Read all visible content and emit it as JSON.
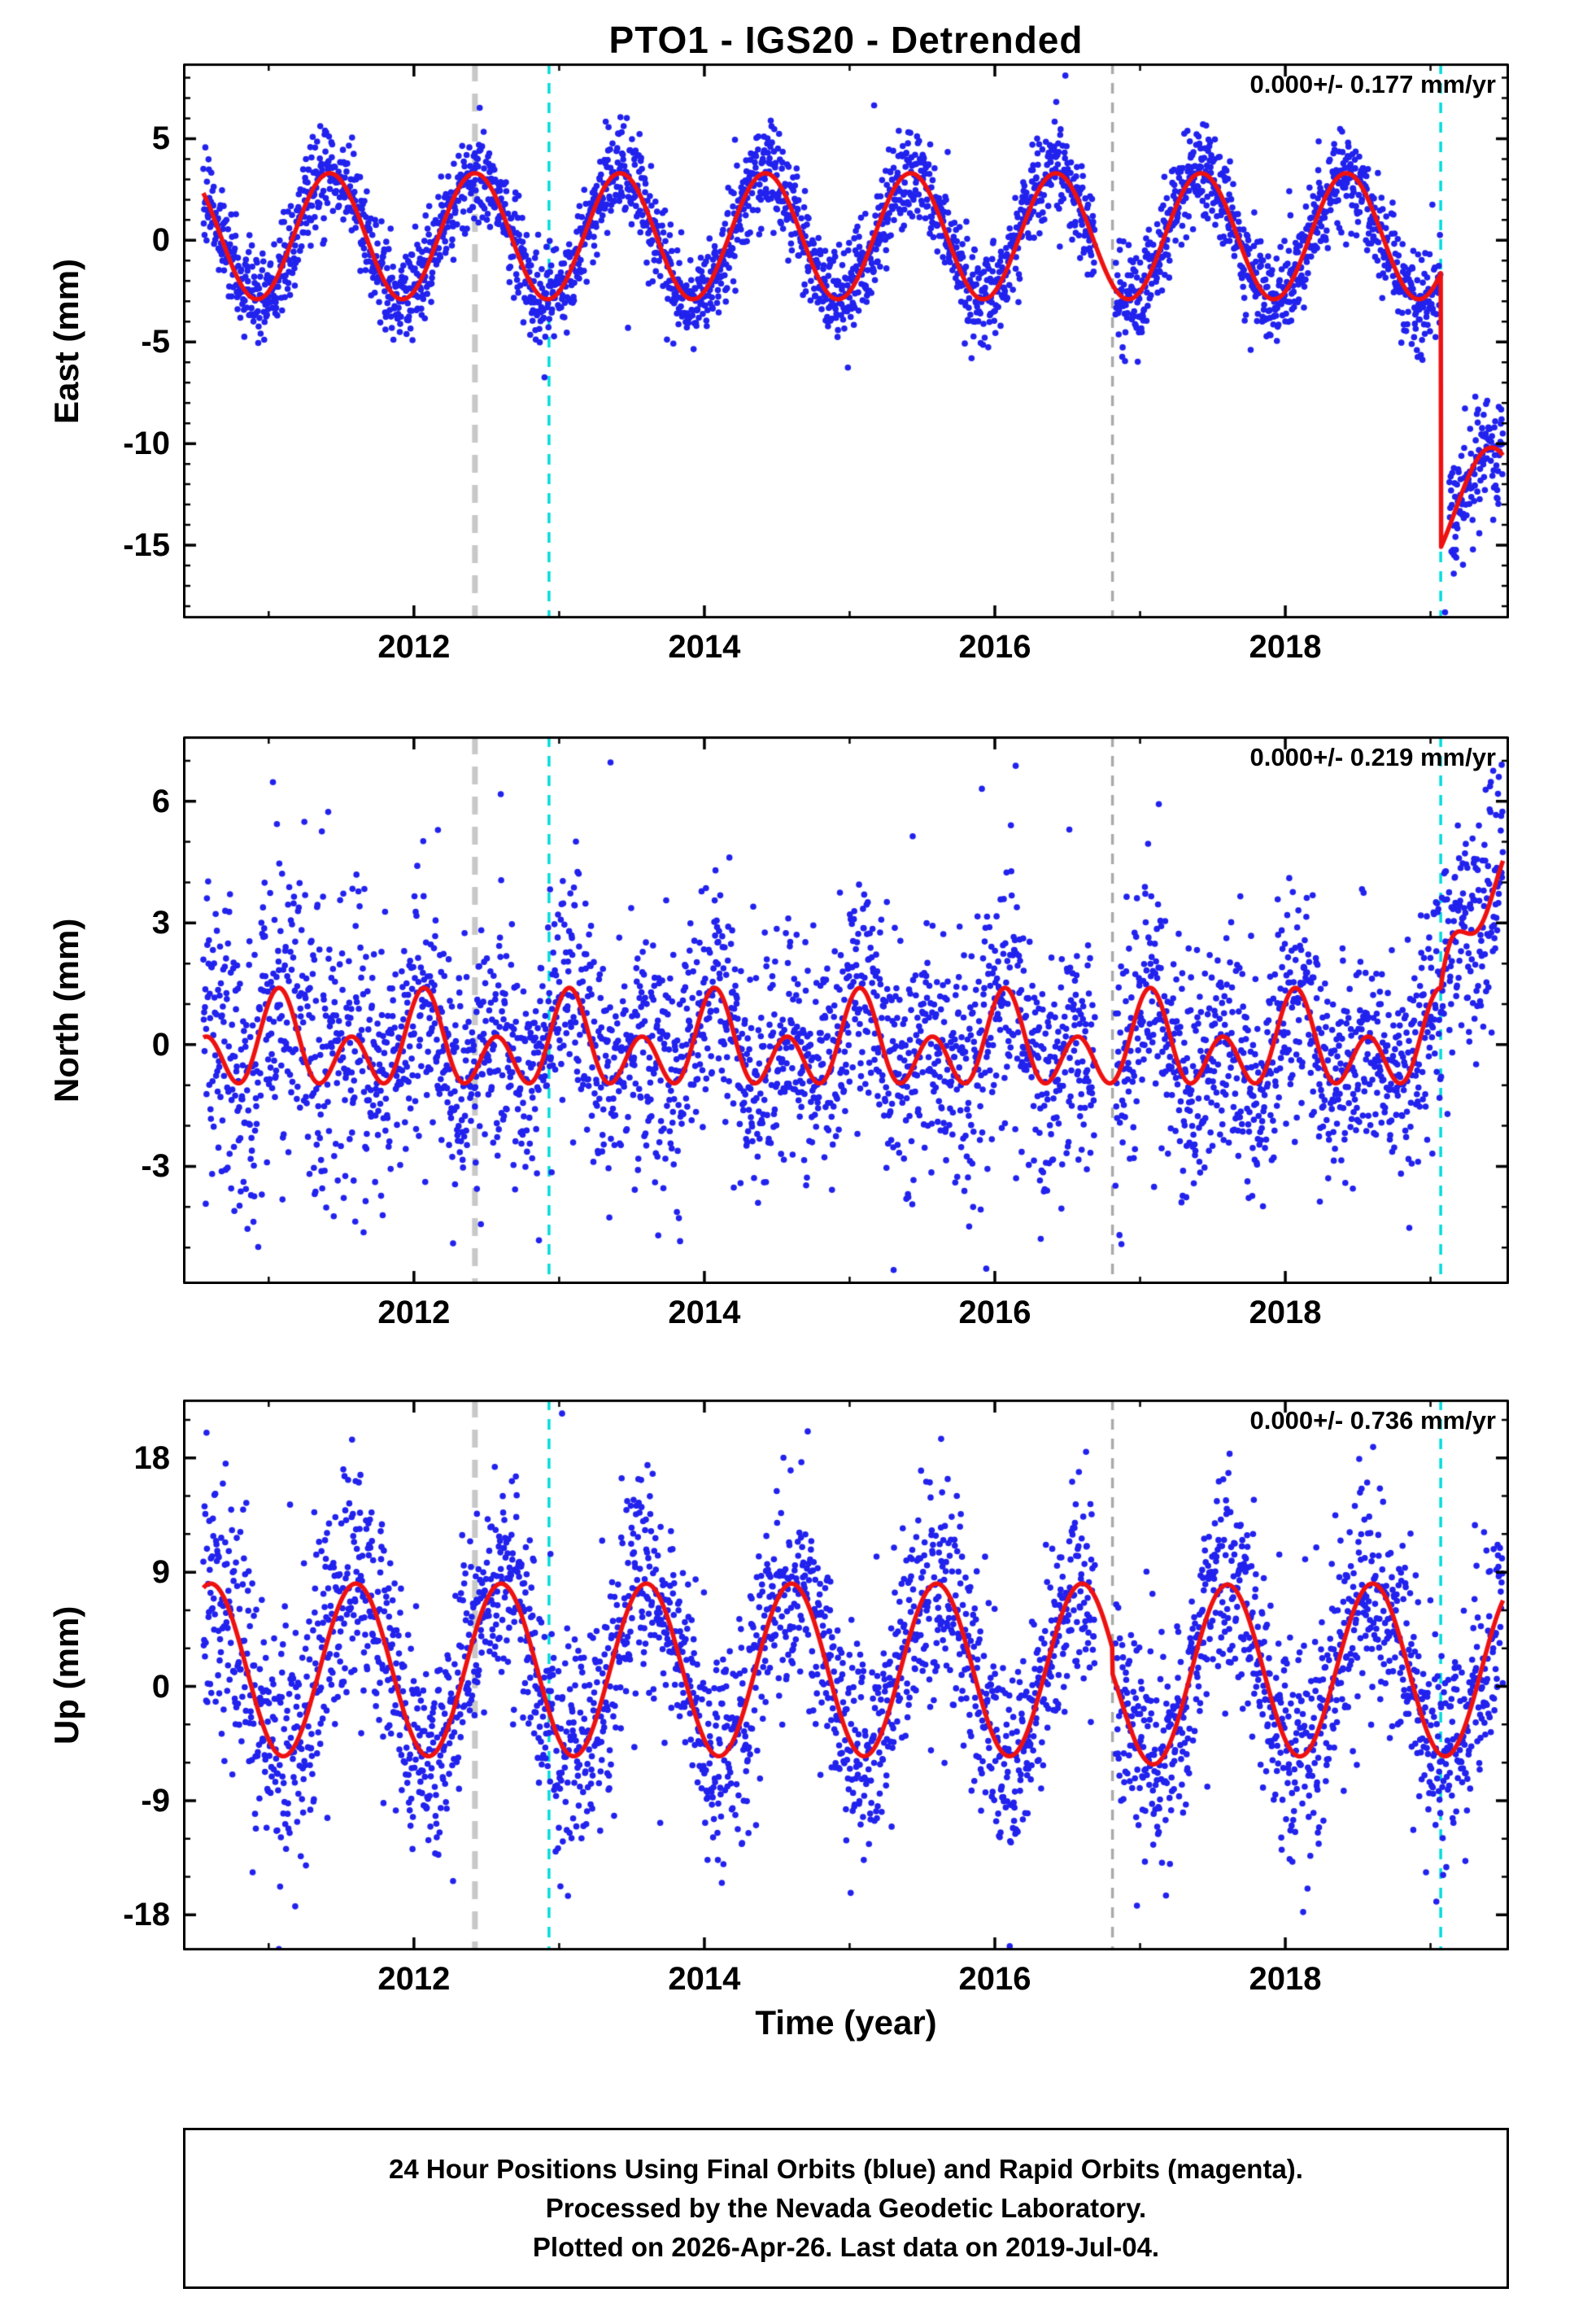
{
  "title": "PTO1 - IGS20 - Detrended",
  "x_axis_title": "Time (year)",
  "caption_lines": [
    "24 Hour Positions Using Final Orbits (blue) and Rapid Orbits (magenta).",
    "Processed by the Nevada Geodetic Laboratory.",
    "Plotted on 2026-Apr-26. Last data on 2019-Jul-04."
  ],
  "colors": {
    "points": "#2222ee",
    "model": "#ee1111",
    "frame": "#000000",
    "event_gray": "#c8c8c8",
    "event_gray_thin": "#aaaaaa",
    "event_cyan": "#00dcdc"
  },
  "events": [
    {
      "t": 2012.42,
      "style": "gray_thick"
    },
    {
      "t": 2012.93,
      "style": "cyan"
    },
    {
      "t": 2016.81,
      "style": "gray"
    },
    {
      "t": 2019.07,
      "style": "cyan"
    }
  ],
  "chart_data": [
    {
      "type": "scatter",
      "ylabel": "East (mm)",
      "rate_label": "0.000+/- 0.177 mm/yr",
      "xlim": [
        2010.41,
        2019.54
      ],
      "ylim": [
        -18.6,
        8.7
      ],
      "xticks": [
        2012,
        2014,
        2016,
        2018
      ],
      "xtick_minor_step": 1,
      "yticks": [
        5,
        0,
        -5,
        -10,
        -15
      ],
      "ytick_minor_step": 1,
      "x_start": 2010.55,
      "x_end": 2019.5,
      "gaps": [
        [
          2016.69,
          2016.83
        ],
        [
          2019.07,
          2019.13
        ]
      ],
      "noise_sd": 1.15,
      "noise_segments": [
        [
          2019.13,
          2019.5,
          1.45
        ]
      ],
      "outlier_rate": 0.008,
      "point_radius": 3.8,
      "model": {
        "mean": 0.2,
        "annual_amp": 3.1,
        "annual_phase": 0.42,
        "semi_amp": 0,
        "semi_phase": 0,
        "steps": [
          {
            "t": 2019.07,
            "offset": -13.5
          }
        ]
      },
      "extra_points": [
        [
          2019.1,
          -18.3
        ],
        [
          2019.16,
          -16.4
        ]
      ]
    },
    {
      "type": "scatter",
      "ylabel": "North (mm)",
      "rate_label": "0.000+/- 0.219 mm/yr",
      "xlim": [
        2010.41,
        2019.54
      ],
      "ylim": [
        -5.9,
        7.6
      ],
      "xticks": [
        2012,
        2014,
        2016,
        2018
      ],
      "xtick_minor_step": 1,
      "yticks": [
        6,
        3,
        0,
        -3
      ],
      "ytick_minor_step": 1,
      "x_start": 2010.55,
      "x_end": 2019.5,
      "gaps": [
        [
          2016.69,
          2016.83
        ]
      ],
      "noise_sd": 1.4,
      "noise_segments": [
        [
          2010.55,
          2011.7,
          1.9
        ]
      ],
      "outlier_rate": 0.012,
      "point_radius": 3.8,
      "model": {
        "mean": -0.05,
        "annual_amp": 0.6,
        "annual_phase": 0.07,
        "semi_amp": 0.85,
        "semi_phase": 0.07,
        "steps": [
          {
            "t": 2019.07,
            "offset": 0,
            "rec_amp": 5.2,
            "rec_tau": 0.2
          }
        ]
      },
      "extra_points": [
        [
          2019.47,
          6.6
        ],
        [
          2019.49,
          6.9
        ]
      ]
    },
    {
      "type": "scatter",
      "ylabel": "Up (mm)",
      "rate_label": "0.000+/- 0.736 mm/yr",
      "xlim": [
        2010.41,
        2019.54
      ],
      "ylim": [
        -20.8,
        22.6
      ],
      "xticks": [
        2012,
        2014,
        2016,
        2018
      ],
      "xtick_minor_step": 1,
      "yticks": [
        18,
        9,
        0,
        -9,
        -18
      ],
      "ytick_minor_step": 3,
      "x_start": 2010.55,
      "x_end": 2019.5,
      "gaps": [
        [
          2016.69,
          2016.83
        ]
      ],
      "noise_sd": 4.3,
      "noise_segments": [
        [
          2010.55,
          2011.7,
          5.2
        ]
      ],
      "outlier_rate": 0.01,
      "point_radius": 3.8,
      "model": {
        "mean": 1.3,
        "annual_amp": 6.8,
        "annual_phase": 0.6,
        "semi_amp": 0,
        "semi_phase": 0,
        "steps": [
          {
            "t": 2016.81,
            "offset": -2.0,
            "rec_amp": 2.0,
            "rec_tau": 0.25
          }
        ]
      },
      "extra_points": [
        [
          2013.02,
          21.5
        ],
        [
          2015.63,
          19.5
        ]
      ]
    }
  ]
}
